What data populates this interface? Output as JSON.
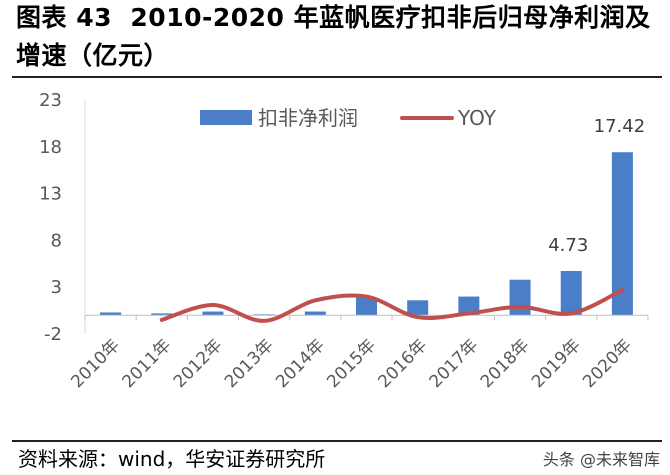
{
  "header": {
    "title_line1": "图表 43  2010-2020 年蓝帆医疗扣非后归母净利润及",
    "title_line2": "增速（亿元）"
  },
  "chart_data": {
    "type": "bar",
    "categories": [
      "2010年",
      "2011年",
      "2012年",
      "2013年",
      "2014年",
      "2015年",
      "2016年",
      "2017年",
      "2018年",
      "2019年",
      "2020年"
    ],
    "series": [
      {
        "name": "扣非净利润",
        "type": "bar",
        "color": "#4A7EC8",
        "values": [
          0.3,
          0.2,
          0.4,
          0.1,
          0.4,
          1.9,
          1.6,
          2.0,
          3.8,
          4.73,
          17.42
        ],
        "data_labels": [
          null,
          null,
          null,
          null,
          null,
          null,
          null,
          null,
          null,
          "4.73",
          "17.42"
        ]
      },
      {
        "name": "YOY",
        "type": "line",
        "smooth": true,
        "color": "#C0504D",
        "values": [
          null,
          -0.5,
          1.1,
          -0.6,
          1.6,
          2.0,
          -0.2,
          0.2,
          0.9,
          0.2,
          2.7
        ]
      }
    ],
    "yticks": [
      23,
      18,
      13,
      8,
      3,
      -2
    ],
    "ylim": [
      -2,
      23
    ],
    "legend": "top-center",
    "grid": false
  },
  "footer": {
    "source": "资料来源：wind，华安证券研究所",
    "watermark": "头条 @未来智库"
  }
}
